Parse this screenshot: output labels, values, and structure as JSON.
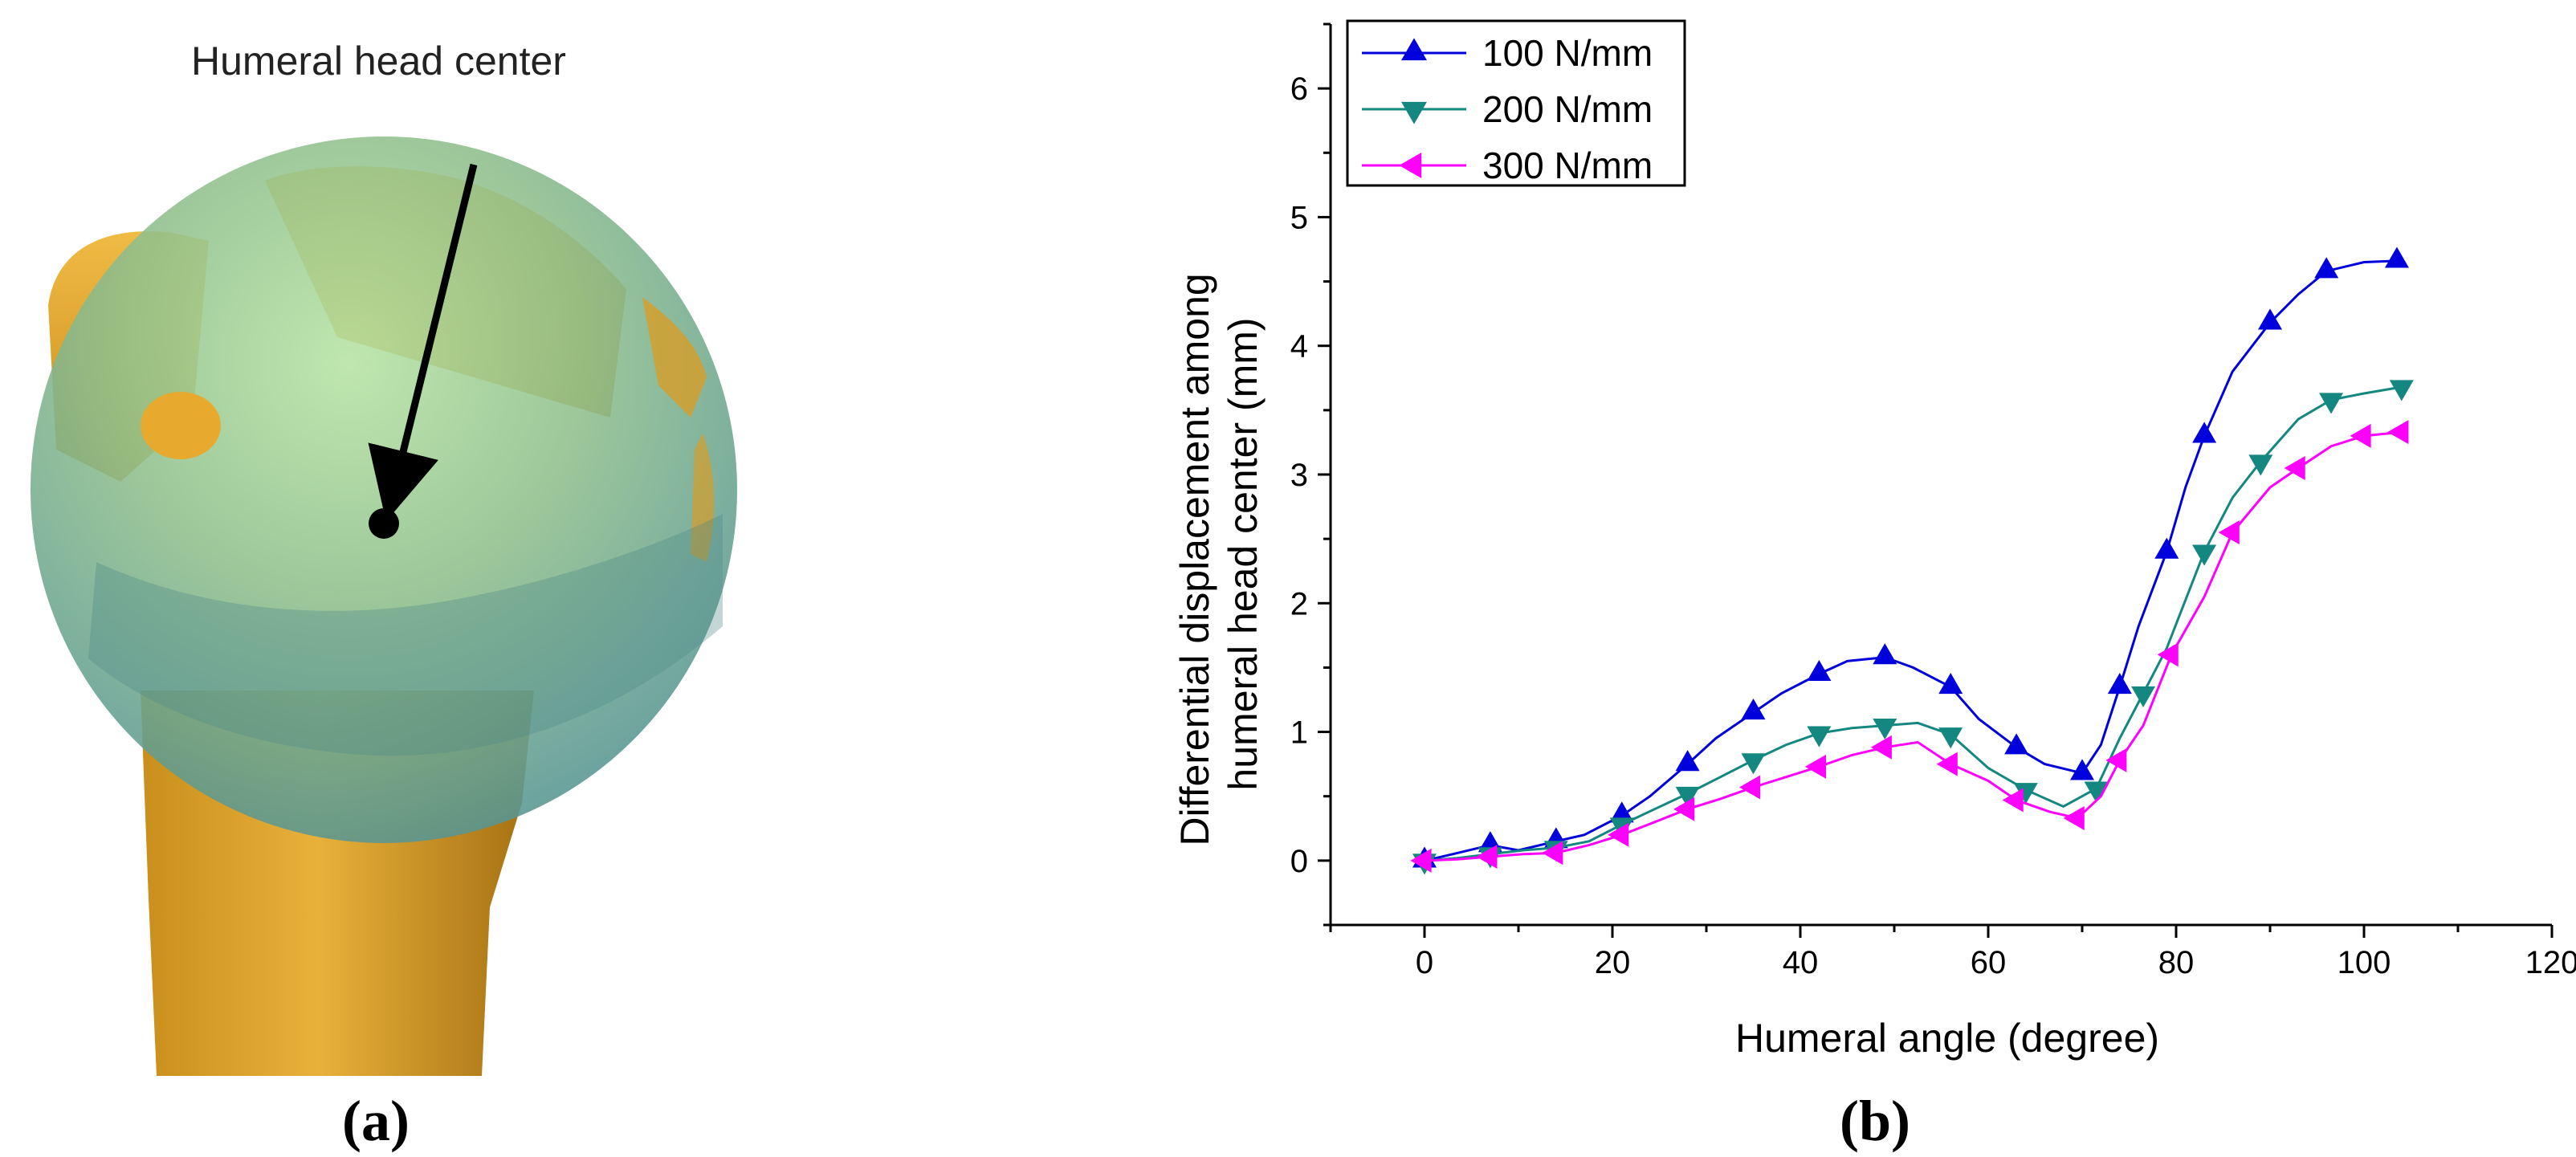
{
  "panel_a": {
    "caption": "(a)",
    "annotation": "Humeral head center",
    "colors": {
      "bone": "#e0a426",
      "bone_dark": "#a8761a",
      "sphere": "#6fa59d",
      "sphere_light": "#a9d39a",
      "marker": "#000000"
    }
  },
  "panel_b": {
    "caption": "(b)"
  },
  "chart_data": {
    "type": "line",
    "title": "",
    "xlabel": "Humeral angle (degree)",
    "ylabel_lines": [
      "Differential displacement among",
      "humeral head center (mm)"
    ],
    "xlim": [
      -10,
      120
    ],
    "ylim": [
      -0.5,
      6.5
    ],
    "xticks": [
      0,
      20,
      40,
      60,
      80,
      100,
      120
    ],
    "yticks": [
      0,
      1,
      2,
      3,
      4,
      5,
      6
    ],
    "grid": false,
    "legend_position": "top-left",
    "series": [
      {
        "name": "100 N/mm",
        "color": "#0000dd",
        "marker": "triangle-up",
        "x": [
          0,
          3,
          7,
          10,
          14,
          17,
          21,
          24,
          28,
          31,
          35,
          38,
          42,
          45,
          49,
          52,
          56,
          59,
          63,
          66,
          70,
          72,
          74,
          76,
          79,
          81,
          83,
          86,
          90,
          93,
          96,
          100,
          103.5
        ],
        "y": [
          0,
          0.05,
          0.12,
          0.08,
          0.15,
          0.2,
          0.35,
          0.5,
          0.75,
          0.95,
          1.15,
          1.3,
          1.45,
          1.55,
          1.58,
          1.5,
          1.35,
          1.1,
          0.88,
          0.75,
          0.68,
          0.9,
          1.35,
          1.82,
          2.4,
          2.9,
          3.3,
          3.8,
          4.18,
          4.4,
          4.58,
          4.65,
          4.66
        ]
      },
      {
        "name": "200 N/mm",
        "color": "#138780",
        "marker": "triangle-down",
        "x": [
          0,
          3.5,
          7,
          10.5,
          14,
          17.5,
          21,
          24.5,
          28,
          31.5,
          35,
          38.5,
          42,
          45.5,
          49,
          52.5,
          56,
          60,
          64,
          68,
          71.5,
          74,
          76.5,
          79,
          83,
          86,
          89,
          93,
          96.5,
          100,
          104
        ],
        "y": [
          0,
          0.02,
          0.05,
          0.08,
          0.1,
          0.15,
          0.28,
          0.4,
          0.52,
          0.65,
          0.78,
          0.9,
          0.99,
          1.03,
          1.05,
          1.07,
          0.98,
          0.72,
          0.55,
          0.42,
          0.56,
          0.95,
          1.3,
          1.65,
          2.4,
          2.82,
          3.1,
          3.43,
          3.58,
          3.63,
          3.68
        ]
      },
      {
        "name": "300 N/mm",
        "color": "#ff00ff",
        "marker": "triangle-left",
        "x": [
          0,
          3.5,
          7,
          10.5,
          14,
          17.5,
          21,
          24.5,
          28,
          31.5,
          35,
          38.5,
          42,
          45.5,
          49,
          52.5,
          56,
          60,
          63,
          66.5,
          69.5,
          72,
          74,
          76.5,
          79.5,
          83,
          86,
          90,
          93,
          96.5,
          100,
          104
        ],
        "y": [
          0,
          0.01,
          0.03,
          0.05,
          0.06,
          0.12,
          0.2,
          0.3,
          0.4,
          0.48,
          0.57,
          0.65,
          0.73,
          0.82,
          0.88,
          0.92,
          0.75,
          0.62,
          0.47,
          0.38,
          0.33,
          0.5,
          0.78,
          1.05,
          1.6,
          2.05,
          2.55,
          2.9,
          3.05,
          3.22,
          3.3,
          3.33
        ]
      }
    ]
  }
}
